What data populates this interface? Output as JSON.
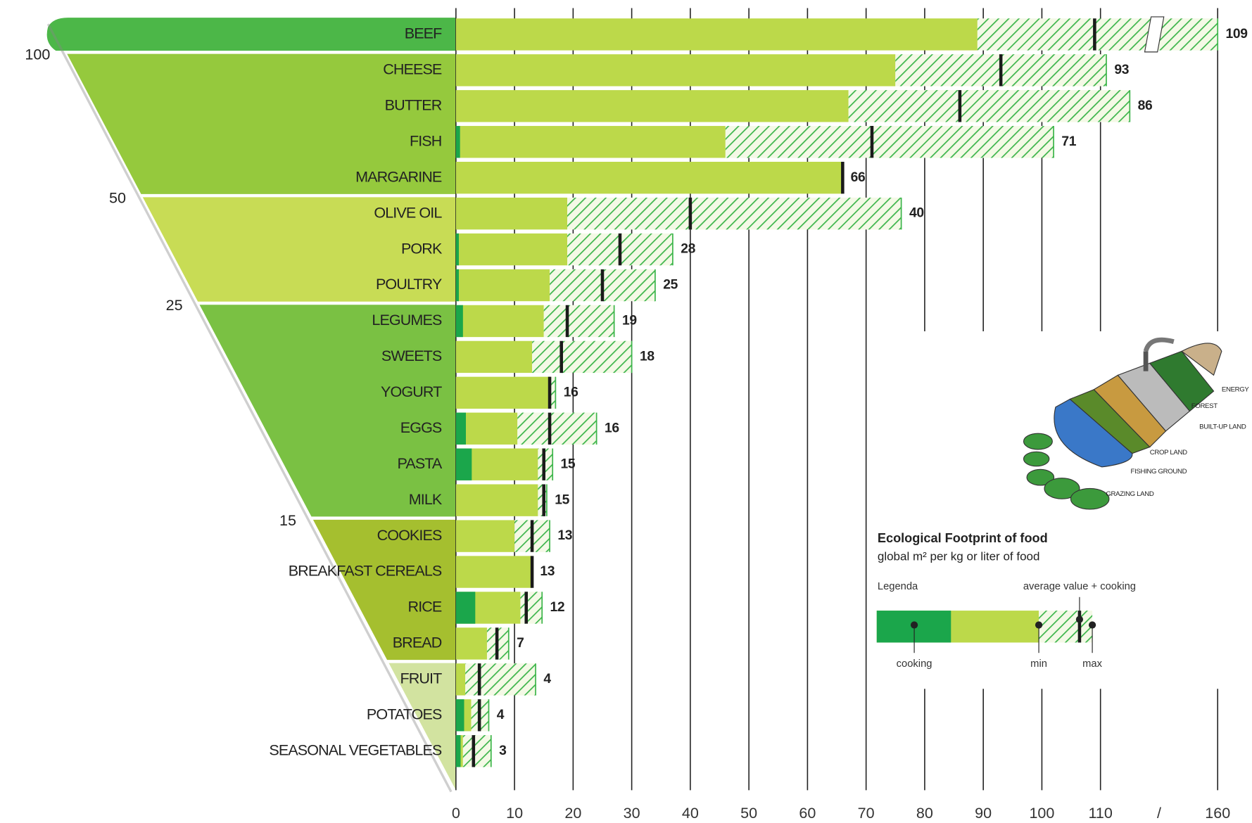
{
  "chart_data": {
    "type": "bar",
    "orientation": "horizontal",
    "title": "Ecological Footprint of food",
    "subtitle": "global m² per kg or liter of food",
    "legend_heading": "Legenda",
    "categories": [
      "BEEF",
      "CHEESE",
      "BUTTER",
      "FISH",
      "MARGARINE",
      "OLIVE OIL",
      "PORK",
      "POULTRY",
      "LEGUMES",
      "SWEETS",
      "YOGURT",
      "EGGS",
      "PASTA",
      "MILK",
      "COOKIES",
      "BREAKFAST CEREALS",
      "RICE",
      "BREAD",
      "FRUIT",
      "POTATOES",
      "SEASONAL VEGETABLES"
    ],
    "series": [
      {
        "name": "cooking",
        "color": "#1ba64b",
        "values": [
          null,
          null,
          null,
          0.7,
          null,
          null,
          0.5,
          0.5,
          1.2,
          null,
          null,
          1.7,
          2.7,
          null,
          null,
          null,
          3.3,
          null,
          null,
          1.4,
          0.8
        ]
      },
      {
        "name": "min",
        "color": "#bcd94a",
        "values": [
          89,
          75,
          67,
          46,
          66,
          19,
          19,
          16,
          15,
          13,
          16,
          10.5,
          14,
          14,
          10,
          13,
          11,
          5.3,
          1.6,
          2.6,
          1.2
        ]
      },
      {
        "name": "average value + cooking",
        "color": "#1a1a1a",
        "values": [
          109,
          93,
          86,
          71,
          66,
          40,
          28,
          25,
          19,
          18,
          16,
          16,
          15,
          15,
          13,
          13,
          12,
          7,
          4,
          4,
          3
        ]
      },
      {
        "name": "max",
        "color": "#3cb54a",
        "values": [
          160,
          111,
          115,
          102,
          66,
          76,
          37,
          34,
          27,
          30,
          17,
          24,
          16.5,
          15.5,
          16,
          13,
          14.7,
          9,
          13.6,
          5.6,
          6
        ]
      }
    ],
    "xlim": [
      0,
      160
    ],
    "xticks": [
      0,
      10,
      20,
      30,
      40,
      50,
      60,
      70,
      80,
      90,
      100,
      110,
      {
        "value": 120,
        "label": "/"
      },
      160
    ],
    "grid": true,
    "thresholds": [
      100,
      50,
      25,
      15
    ],
    "band_colors": [
      "#4cb748",
      "#95c93d",
      "#c8dc55",
      "#7ac143",
      "#a5bf2f",
      "#d2e3a0"
    ],
    "illustration_labels": [
      "ENERGY",
      "FOREST",
      "BUILT-UP LAND",
      "CROP LAND",
      "FISHING GROUND",
      "GRAZING LAND"
    ]
  }
}
